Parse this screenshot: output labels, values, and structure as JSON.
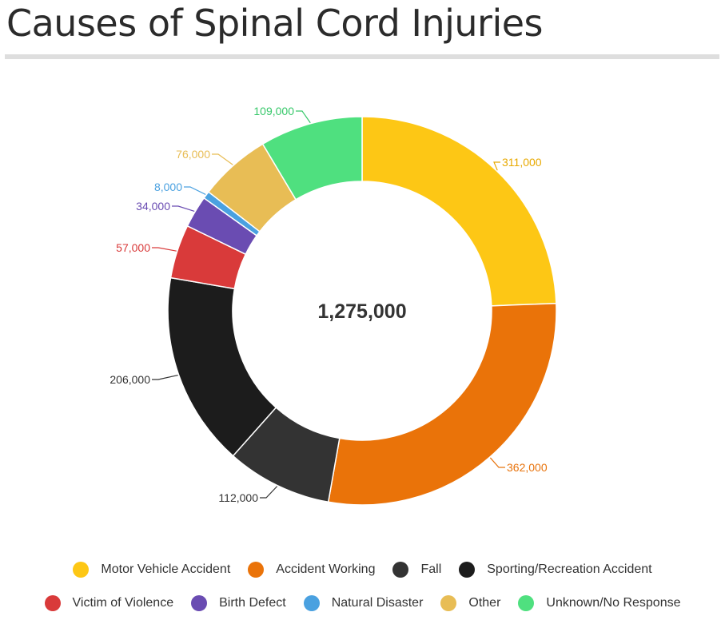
{
  "title": "Causes of Spinal Cord Injuries",
  "chart_data": {
    "type": "pie",
    "donut": true,
    "title": "Causes of Spinal Cord Injuries",
    "center_label": "1,275,000",
    "total": 1275000,
    "legend_position": "bottom",
    "categories": [
      "Motor Vehicle Accident",
      "Accident Working",
      "Fall",
      "Sporting/Recreation Accident",
      "Victim of Violence",
      "Birth Defect",
      "Natural Disaster",
      "Other",
      "Unknown/No Response"
    ],
    "values": [
      311000,
      362000,
      112000,
      206000,
      57000,
      34000,
      8000,
      76000,
      109000
    ],
    "value_labels": [
      "311,000",
      "362,000",
      "112,000",
      "206,000",
      "57,000",
      "34,000",
      "8,000",
      "76,000",
      "109,000"
    ],
    "colors": [
      "#fdc715",
      "#ea7309",
      "#333333",
      "#1c1c1c",
      "#d93a3a",
      "#6a4cb2",
      "#4aa1e0",
      "#e8bd55",
      "#4fe07f"
    ],
    "label_colors": [
      "#e8a900",
      "#e8730c",
      "#333333",
      "#333333",
      "#d93a3a",
      "#6a4cb2",
      "#4aa1e0",
      "#e8bd55",
      "#37c86a"
    ]
  },
  "legend": {
    "rows": [
      [
        {
          "label": "Motor Vehicle Accident",
          "color": "#fdc715"
        },
        {
          "label": "Accident Working",
          "color": "#ea7309"
        },
        {
          "label": "Fall",
          "color": "#333333"
        },
        {
          "label": "Sporting/Recreation Accident",
          "color": "#1c1c1c"
        }
      ],
      [
        {
          "label": "Victim of Violence",
          "color": "#d93a3a"
        },
        {
          "label": "Birth Defect",
          "color": "#6a4cb2"
        },
        {
          "label": "Natural Disaster",
          "color": "#4aa1e0"
        },
        {
          "label": "Other",
          "color": "#e8bd55"
        },
        {
          "label": "Unknown/No Response",
          "color": "#4fe07f"
        }
      ]
    ]
  }
}
